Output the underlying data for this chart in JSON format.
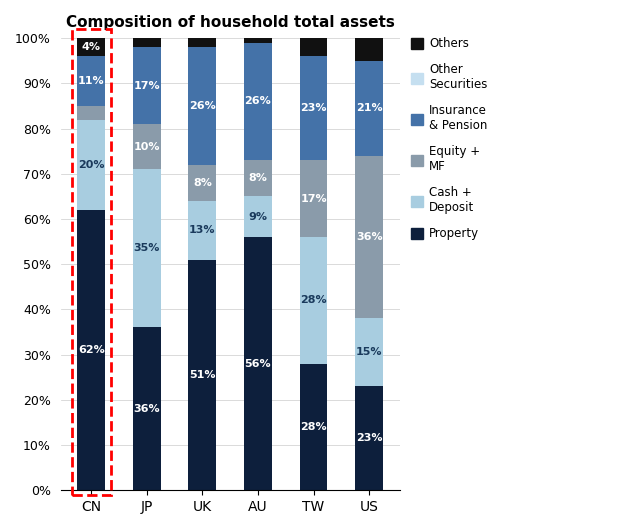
{
  "title": "Composition of household total assets",
  "categories": [
    "CN",
    "JP",
    "UK",
    "AU",
    "TW",
    "US"
  ],
  "segments": {
    "Property": [
      62,
      36,
      51,
      56,
      28,
      23
    ],
    "Cash_Deposit": [
      20,
      35,
      13,
      9,
      28,
      15
    ],
    "Equity_MF": [
      3,
      10,
      8,
      8,
      17,
      36
    ],
    "Insurance_Pension": [
      11,
      17,
      26,
      26,
      23,
      21
    ],
    "Other_Securities": [
      0,
      0,
      0,
      0,
      0,
      0
    ],
    "Others": [
      4,
      2,
      2,
      1,
      4,
      5
    ]
  },
  "segment_labels": {
    "Property": [
      "62%",
      "36%",
      "51%",
      "56%",
      "28%",
      "23%"
    ],
    "Cash_Deposit": [
      "20%",
      "35%",
      "13%",
      "9%",
      "28%",
      "15%"
    ],
    "Equity_MF": [
      "",
      "10%",
      "8%",
      "8%",
      "17%",
      "36%"
    ],
    "Insurance_Pension": [
      "11%",
      "17%",
      "26%",
      "26%",
      "23%",
      "21%"
    ],
    "Other_Securities": [
      "",
      "",
      "",
      "",
      "",
      ""
    ],
    "Others": [
      "4%",
      "",
      "",
      "",
      "",
      ""
    ]
  },
  "colors": {
    "Property": "#0d1f3c",
    "Cash_Deposit": "#a8cde0",
    "Equity_MF": "#8a9baa",
    "Insurance_Pension": "#4472a8",
    "Other_Securities": "#c5dff0",
    "Others": "#111111"
  },
  "legend_labels": {
    "Property": "Property",
    "Cash_Deposit": "Cash +\nDeposit",
    "Equity_MF": "Equity +\nMF",
    "Insurance_Pension": "Insurance\n& Pension",
    "Other_Securities": "Other\nSecurities",
    "Others": "Others"
  },
  "legend_order": [
    "Others",
    "Other_Securities",
    "Insurance_Pension",
    "Equity_MF",
    "Cash_Deposit",
    "Property"
  ],
  "plot_order": [
    "Property",
    "Cash_Deposit",
    "Equity_MF",
    "Insurance_Pension",
    "Other_Securities",
    "Others"
  ],
  "background_color": "#ffffff",
  "bar_width": 0.5,
  "figsize": [
    6.33,
    5.29
  ],
  "dpi": 100
}
